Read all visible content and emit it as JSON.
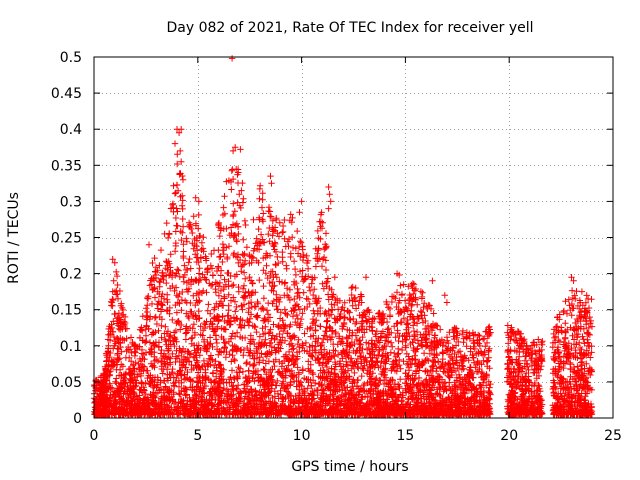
{
  "chart_data": {
    "type": "scatter",
    "title": "Day 082 of 2021, Rate Of TEC Index for receiver yell",
    "xlabel": "GPS time / hours",
    "ylabel": "ROTI / TECUs",
    "xlim": [
      0,
      25
    ],
    "ylim": [
      0,
      0.5
    ],
    "x_ticks": [
      0,
      5,
      10,
      15,
      20,
      25
    ],
    "x_tick_labels": [
      "0",
      "5",
      "10",
      "15",
      "20",
      "25"
    ],
    "y_ticks": [
      0,
      0.05,
      0.1,
      0.15,
      0.2,
      0.25,
      0.3,
      0.35,
      0.4,
      0.45,
      0.5
    ],
    "y_tick_labels": [
      "0",
      "0.05",
      "0.1",
      "0.15",
      "0.2",
      "0.25",
      "0.3",
      "0.35",
      "0.4",
      "0.45",
      "0.5"
    ],
    "grid": true,
    "marker": "+",
    "color": "#ff0000",
    "data_gaps_hours": [
      [
        19.1,
        19.9
      ],
      [
        21.6,
        22.1
      ]
    ],
    "envelope": {
      "x": [
        0,
        0.5,
        1,
        1.5,
        2,
        2.5,
        3,
        3.5,
        4,
        4.5,
        5,
        5.5,
        6,
        6.5,
        7,
        7.5,
        8,
        8.5,
        9,
        9.5,
        10,
        10.5,
        11,
        11.5,
        12,
        12.5,
        13,
        13.5,
        14,
        14.5,
        15,
        15.5,
        16,
        16.5,
        17,
        17.5,
        18,
        18.5,
        19,
        20,
        20.5,
        21,
        21.5,
        22,
        22.5,
        23,
        23.5,
        24
      ],
      "max_roti": [
        0.05,
        0.06,
        0.22,
        0.14,
        0.1,
        0.17,
        0.25,
        0.24,
        0.4,
        0.3,
        0.31,
        0.22,
        0.28,
        0.37,
        0.37,
        0.26,
        0.34,
        0.3,
        0.28,
        0.3,
        0.26,
        0.22,
        0.32,
        0.18,
        0.16,
        0.19,
        0.17,
        0.14,
        0.16,
        0.2,
        0.2,
        0.19,
        0.19,
        0.13,
        0.12,
        0.13,
        0.12,
        0.12,
        0.13,
        0.13,
        0.12,
        0.11,
        0.11,
        0.13,
        0.15,
        0.19,
        0.18,
        0.18
      ]
    },
    "points": [
      [
        6.65,
        0.498
      ],
      [
        4.0,
        0.4
      ],
      [
        4.2,
        0.4
      ],
      [
        4.1,
        0.395
      ],
      [
        3.9,
        0.38
      ],
      [
        4.15,
        0.37
      ],
      [
        4.2,
        0.355
      ],
      [
        6.8,
        0.375
      ],
      [
        7.05,
        0.372
      ],
      [
        6.7,
        0.37
      ],
      [
        7.1,
        0.315
      ],
      [
        7.0,
        0.31
      ],
      [
        6.95,
        0.34
      ],
      [
        8.5,
        0.335
      ],
      [
        8.55,
        0.325
      ],
      [
        11.3,
        0.32
      ],
      [
        11.35,
        0.31
      ],
      [
        11.4,
        0.3
      ],
      [
        11.3,
        0.29
      ],
      [
        10.0,
        0.3
      ],
      [
        9.9,
        0.285
      ],
      [
        4.9,
        0.305
      ],
      [
        5.05,
        0.3
      ],
      [
        3.5,
        0.27
      ],
      [
        3.4,
        0.255
      ],
      [
        2.65,
        0.24
      ],
      [
        0.9,
        0.22
      ],
      [
        1.0,
        0.215
      ],
      [
        0.95,
        0.19
      ],
      [
        0.9,
        0.175
      ],
      [
        13.1,
        0.195
      ],
      [
        14.6,
        0.2
      ],
      [
        14.7,
        0.198
      ],
      [
        16.3,
        0.19
      ],
      [
        16.9,
        0.17
      ],
      [
        17.0,
        0.16
      ],
      [
        11.6,
        0.195
      ],
      [
        12.4,
        0.18
      ],
      [
        23.0,
        0.195
      ],
      [
        23.1,
        0.19
      ],
      [
        23.5,
        0.175
      ],
      [
        23.8,
        0.165
      ],
      [
        1.5,
        0.14
      ],
      [
        1.2,
        0.145
      ],
      [
        0.7,
        0.1
      ],
      [
        0.8,
        0.12
      ],
      [
        19.0,
        0.125
      ],
      [
        18.9,
        0.12
      ],
      [
        20.15,
        0.12
      ],
      [
        20.3,
        0.115
      ],
      [
        21.2,
        0.105
      ],
      [
        21.1,
        0.1
      ],
      [
        0.05,
        0.015
      ],
      [
        0.1,
        0.025
      ],
      [
        0.2,
        0.05
      ],
      [
        0.3,
        0.04
      ]
    ]
  }
}
